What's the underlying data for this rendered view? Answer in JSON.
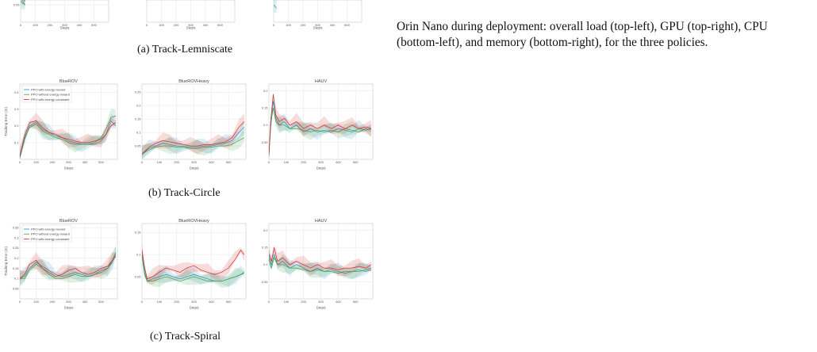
{
  "captions": {
    "a": "(a) Track-Lemniscate",
    "b": "(b) Track-Circle",
    "c": "(c) Track-Spiral"
  },
  "right_text": "Orin Nano during deployment: overall load (top-left), GPU (top-right), CPU (bottom-left), and memory (bottom-right), for the three policies.",
  "legend": [
    {
      "label": "PPO with energy reward",
      "color": "#2e8bc0"
    },
    {
      "label": "PPO without energy reward",
      "color": "#3aa043"
    },
    {
      "label": "PPO with energy constraint",
      "color": "#d62728"
    }
  ],
  "colors": {
    "blue": "#2e8bc0",
    "green": "#3aa043",
    "red": "#d62728"
  },
  "chart_data": [
    {
      "type": "line",
      "id": "a1",
      "title": "",
      "xlabel": "Steps",
      "ylabel": "",
      "xticks": [
        "0",
        "100",
        "200",
        "300",
        "400",
        "500"
      ],
      "yticks": [
        "0.05"
      ],
      "xlim": [
        0,
        600
      ],
      "ylim": [
        0.0,
        0.2
      ],
      "series": [
        {
          "name": "PPO with energy reward",
          "x": [
            0,
            30
          ],
          "y": [
            0.06,
            0.05
          ]
        },
        {
          "name": "PPO without energy reward",
          "x": [
            0,
            30
          ],
          "y": [
            0.07,
            0.05
          ]
        },
        {
          "name": "PPO with energy constraint",
          "x": [
            0,
            30
          ],
          "y": [
            0.08,
            0.06
          ]
        }
      ]
    },
    {
      "type": "line",
      "id": "a2",
      "title": "",
      "xlabel": "Steps",
      "ylabel": "",
      "xticks": [
        "0",
        "100",
        "200",
        "300",
        "400",
        "500"
      ],
      "yticks": [],
      "xlim": [
        0,
        600
      ],
      "ylim": [
        0.0,
        0.2
      ],
      "series": []
    },
    {
      "type": "line",
      "id": "a3",
      "title": "",
      "xlabel": "Steps",
      "ylabel": "",
      "xticks": [
        "0",
        "100",
        "200",
        "300",
        "400",
        "500"
      ],
      "yticks": [],
      "xlim": [
        0,
        600
      ],
      "ylim": [
        0.0,
        0.2
      ],
      "series": [
        {
          "name": "PPO with energy reward",
          "x": [
            0,
            20
          ],
          "y": [
            0.05,
            0.04
          ]
        }
      ]
    },
    {
      "type": "line",
      "id": "b1",
      "title": "BlueROV",
      "xlabel": "Steps",
      "ylabel": "Tracking Error (m)",
      "xticks": [
        "0",
        "100",
        "200",
        "300",
        "400",
        "500"
      ],
      "yticks": [
        "0.1",
        "0.2",
        "0.3",
        "0.4"
      ],
      "xlim": [
        0,
        600
      ],
      "ylim": [
        0.0,
        0.45
      ],
      "legend_position": "top-left",
      "series": [
        {
          "name": "PPO with energy reward",
          "x": [
            0,
            30,
            60,
            100,
            140,
            180,
            220,
            260,
            300,
            340,
            380,
            420,
            460,
            500,
            530,
            560,
            590
          ],
          "y": [
            0.01,
            0.12,
            0.2,
            0.22,
            0.18,
            0.16,
            0.14,
            0.13,
            0.11,
            0.1,
            0.09,
            0.09,
            0.09,
            0.11,
            0.15,
            0.23,
            0.2
          ]
        },
        {
          "name": "PPO without energy reward",
          "x": [
            0,
            30,
            60,
            100,
            140,
            180,
            220,
            260,
            300,
            340,
            380,
            420,
            460,
            500,
            530,
            560,
            590
          ],
          "y": [
            0.01,
            0.13,
            0.19,
            0.21,
            0.17,
            0.15,
            0.13,
            0.12,
            0.1,
            0.09,
            0.09,
            0.09,
            0.1,
            0.13,
            0.18,
            0.25,
            0.26
          ]
        },
        {
          "name": "PPO with energy constraint",
          "x": [
            0,
            30,
            60,
            100,
            140,
            180,
            220,
            260,
            300,
            340,
            380,
            420,
            460,
            500,
            530,
            560,
            590
          ],
          "y": [
            0.02,
            0.14,
            0.22,
            0.23,
            0.19,
            0.16,
            0.15,
            0.13,
            0.12,
            0.11,
            0.1,
            0.1,
            0.11,
            0.12,
            0.15,
            0.2,
            0.22
          ]
        }
      ]
    },
    {
      "type": "line",
      "id": "b2",
      "title": "BlueROVHeavy",
      "xlabel": "Steps",
      "ylabel": "",
      "xticks": [
        "0",
        "100",
        "200",
        "300",
        "400",
        "500"
      ],
      "yticks": [
        "0.05",
        "0.1",
        "0.15",
        "0.2",
        "0.25"
      ],
      "xlim": [
        0,
        600
      ],
      "ylim": [
        0.0,
        0.28
      ],
      "series": [
        {
          "name": "PPO with energy reward",
          "x": [
            0,
            40,
            80,
            120,
            160,
            200,
            240,
            280,
            320,
            360,
            400,
            440,
            480,
            520,
            560,
            590
          ],
          "y": [
            0.02,
            0.04,
            0.05,
            0.06,
            0.055,
            0.05,
            0.048,
            0.045,
            0.045,
            0.05,
            0.05,
            0.055,
            0.06,
            0.07,
            0.1,
            0.12
          ]
        },
        {
          "name": "PPO without energy reward",
          "x": [
            0,
            40,
            80,
            120,
            160,
            200,
            240,
            280,
            320,
            360,
            400,
            440,
            480,
            520,
            560,
            590
          ],
          "y": [
            0.02,
            0.035,
            0.045,
            0.05,
            0.05,
            0.045,
            0.045,
            0.04,
            0.04,
            0.045,
            0.045,
            0.05,
            0.05,
            0.055,
            0.07,
            0.08
          ]
        },
        {
          "name": "PPO with energy constraint",
          "x": [
            0,
            40,
            80,
            120,
            160,
            200,
            240,
            280,
            320,
            360,
            400,
            440,
            480,
            520,
            560,
            590
          ],
          "y": [
            0.02,
            0.045,
            0.06,
            0.07,
            0.065,
            0.06,
            0.055,
            0.05,
            0.05,
            0.055,
            0.055,
            0.06,
            0.065,
            0.08,
            0.12,
            0.14
          ]
        }
      ]
    },
    {
      "type": "line",
      "id": "b3",
      "title": "HAUV",
      "xlabel": "Steps",
      "ylabel": "",
      "xticks": [
        "0",
        "100",
        "200",
        "300",
        "400",
        "500"
      ],
      "yticks": [
        "0.05",
        "0.1",
        "0.15",
        "0.2"
      ],
      "xlim": [
        0,
        600
      ],
      "ylim": [
        0.0,
        0.22
      ],
      "series": [
        {
          "name": "PPO with energy reward",
          "x": [
            0,
            10,
            25,
            40,
            60,
            90,
            120,
            160,
            200,
            240,
            280,
            320,
            360,
            400,
            440,
            480,
            520,
            560,
            590
          ],
          "y": [
            0.01,
            0.09,
            0.17,
            0.12,
            0.1,
            0.11,
            0.09,
            0.1,
            0.08,
            0.09,
            0.08,
            0.085,
            0.08,
            0.09,
            0.085,
            0.08,
            0.09,
            0.085,
            0.09
          ]
        },
        {
          "name": "PPO without energy reward",
          "x": [
            0,
            10,
            25,
            40,
            60,
            90,
            120,
            160,
            200,
            240,
            280,
            320,
            360,
            400,
            440,
            480,
            520,
            560,
            590
          ],
          "y": [
            0.01,
            0.1,
            0.15,
            0.11,
            0.1,
            0.1,
            0.09,
            0.09,
            0.085,
            0.08,
            0.085,
            0.08,
            0.085,
            0.08,
            0.09,
            0.085,
            0.08,
            0.09,
            0.085
          ]
        },
        {
          "name": "PPO with energy constraint",
          "x": [
            0,
            10,
            25,
            40,
            60,
            90,
            120,
            160,
            200,
            240,
            280,
            320,
            360,
            400,
            440,
            480,
            520,
            560,
            590
          ],
          "y": [
            0.01,
            0.11,
            0.19,
            0.13,
            0.11,
            0.12,
            0.1,
            0.11,
            0.09,
            0.1,
            0.09,
            0.1,
            0.09,
            0.1,
            0.09,
            0.1,
            0.09,
            0.095,
            0.09
          ]
        }
      ]
    },
    {
      "type": "line",
      "id": "c1",
      "title": "BlueROV",
      "xlabel": "Steps",
      "ylabel": "Tracking Error (m)",
      "xticks": [
        "0",
        "100",
        "200",
        "300",
        "400",
        "500"
      ],
      "yticks": [
        "0.05",
        "0.1",
        "0.15",
        "0.2",
        "0.25",
        "0.3",
        "0.35"
      ],
      "xlim": [
        0,
        600
      ],
      "ylim": [
        0.0,
        0.37
      ],
      "legend_position": "top-left",
      "series": [
        {
          "name": "PPO with energy reward",
          "x": [
            0,
            30,
            60,
            100,
            140,
            180,
            220,
            260,
            300,
            340,
            380,
            420,
            460,
            500,
            540,
            570,
            590
          ],
          "y": [
            0.1,
            0.11,
            0.15,
            0.18,
            0.16,
            0.14,
            0.12,
            0.11,
            0.12,
            0.13,
            0.12,
            0.11,
            0.12,
            0.14,
            0.15,
            0.18,
            0.22
          ]
        },
        {
          "name": "PPO without energy reward",
          "x": [
            0,
            30,
            60,
            100,
            140,
            180,
            220,
            260,
            300,
            340,
            380,
            420,
            460,
            500,
            540,
            570,
            590
          ],
          "y": [
            0.1,
            0.1,
            0.14,
            0.17,
            0.15,
            0.12,
            0.1,
            0.1,
            0.11,
            0.12,
            0.11,
            0.11,
            0.12,
            0.13,
            0.15,
            0.19,
            0.23
          ]
        },
        {
          "name": "PPO with energy constraint",
          "x": [
            0,
            30,
            60,
            100,
            140,
            180,
            220,
            260,
            300,
            340,
            380,
            420,
            460,
            500,
            540,
            570,
            590
          ],
          "y": [
            0.1,
            0.12,
            0.17,
            0.19,
            0.15,
            0.13,
            0.11,
            0.12,
            0.14,
            0.15,
            0.13,
            0.12,
            0.13,
            0.15,
            0.16,
            0.19,
            0.21
          ]
        }
      ]
    },
    {
      "type": "line",
      "id": "c2",
      "title": "BlueROVHeavy",
      "xlabel": "Steps",
      "ylabel": "",
      "xticks": [
        "0",
        "100",
        "200",
        "300",
        "400",
        "500"
      ],
      "yticks": [
        "0.05",
        "0.1",
        "0.15"
      ],
      "xlim": [
        0,
        600
      ],
      "ylim": [
        0.0,
        0.17
      ],
      "series": [
        {
          "name": "PPO with energy reward",
          "x": [
            0,
            15,
            30,
            60,
            100,
            140,
            180,
            220,
            260,
            300,
            340,
            380,
            420,
            460,
            500,
            540,
            570,
            590
          ],
          "y": [
            0.1,
            0.06,
            0.04,
            0.045,
            0.05,
            0.055,
            0.05,
            0.045,
            0.05,
            0.055,
            0.05,
            0.045,
            0.04,
            0.04,
            0.045,
            0.05,
            0.055,
            0.06
          ]
        },
        {
          "name": "PPO without energy reward",
          "x": [
            0,
            15,
            30,
            60,
            100,
            140,
            180,
            220,
            260,
            300,
            340,
            380,
            420,
            460,
            500,
            540,
            570,
            590
          ],
          "y": [
            0.1,
            0.055,
            0.04,
            0.04,
            0.045,
            0.05,
            0.045,
            0.04,
            0.045,
            0.05,
            0.045,
            0.04,
            0.04,
            0.04,
            0.045,
            0.05,
            0.055,
            0.058
          ]
        },
        {
          "name": "PPO with energy constraint",
          "x": [
            0,
            15,
            30,
            60,
            100,
            140,
            180,
            220,
            260,
            300,
            340,
            380,
            420,
            460,
            500,
            540,
            570,
            590
          ],
          "y": [
            0.11,
            0.07,
            0.045,
            0.05,
            0.06,
            0.07,
            0.065,
            0.06,
            0.07,
            0.075,
            0.065,
            0.06,
            0.055,
            0.06,
            0.07,
            0.09,
            0.11,
            0.1
          ]
        }
      ]
    },
    {
      "type": "line",
      "id": "c3",
      "title": "HAUV",
      "xlabel": "Steps",
      "ylabel": "",
      "xticks": [
        "0",
        "100",
        "200",
        "300",
        "400",
        "500"
      ],
      "yticks": [
        "0.05",
        "0.1",
        "0.15",
        "0.2"
      ],
      "xlim": [
        0,
        600
      ],
      "ylim": [
        0.0,
        0.22
      ],
      "series": [
        {
          "name": "PPO with energy reward",
          "x": [
            0,
            15,
            30,
            50,
            80,
            120,
            160,
            200,
            240,
            280,
            320,
            360,
            400,
            440,
            480,
            520,
            560,
            590
          ],
          "y": [
            0.12,
            0.1,
            0.13,
            0.1,
            0.11,
            0.09,
            0.1,
            0.09,
            0.08,
            0.09,
            0.08,
            0.085,
            0.08,
            0.075,
            0.08,
            0.085,
            0.08,
            0.085
          ]
        },
        {
          "name": "PPO without energy reward",
          "x": [
            0,
            15,
            30,
            50,
            80,
            120,
            160,
            200,
            240,
            280,
            320,
            360,
            400,
            440,
            480,
            520,
            560,
            590
          ],
          "y": [
            0.12,
            0.09,
            0.12,
            0.1,
            0.1,
            0.09,
            0.09,
            0.085,
            0.08,
            0.085,
            0.08,
            0.08,
            0.075,
            0.08,
            0.08,
            0.08,
            0.085,
            0.09
          ]
        },
        {
          "name": "PPO with energy constraint",
          "x": [
            0,
            15,
            30,
            50,
            80,
            120,
            160,
            200,
            240,
            280,
            320,
            360,
            400,
            440,
            480,
            520,
            560,
            590
          ],
          "y": [
            0.13,
            0.11,
            0.15,
            0.11,
            0.12,
            0.1,
            0.11,
            0.1,
            0.09,
            0.1,
            0.09,
            0.09,
            0.085,
            0.09,
            0.09,
            0.095,
            0.09,
            0.1
          ]
        }
      ]
    }
  ]
}
